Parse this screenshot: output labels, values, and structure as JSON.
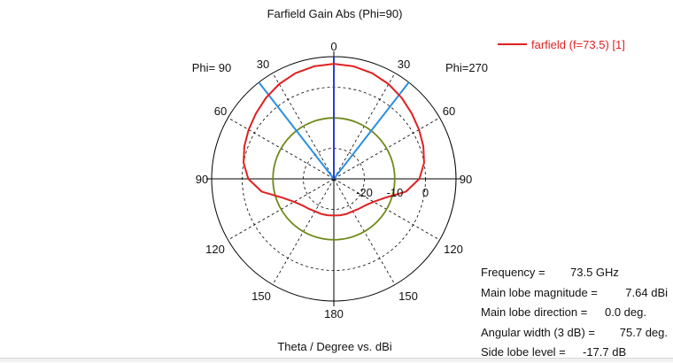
{
  "chart_data": {
    "type": "polar",
    "title": "Farfield Gain Abs (Phi=90)",
    "xlabel": "Theta / Degree vs. dBi",
    "phi_left_label": "Phi= 90",
    "phi_right_label": "Phi=270",
    "angle_tick_labels": {
      "top": "0",
      "upper_left": [
        "30",
        "60"
      ],
      "upper_right": [
        "30",
        "60"
      ],
      "left": "90",
      "right": "90",
      "lower_left": [
        "120",
        "150"
      ],
      "lower_right": [
        "120",
        "150"
      ],
      "bottom": "180"
    },
    "radial_tick_labels": [
      "-20",
      "-10",
      "0"
    ],
    "radial_range_dbi": [
      -30,
      10
    ],
    "grid": true,
    "legend_position": "top-right",
    "series": [
      {
        "name": "farfield (f=73.5) [1]",
        "color": "#e02020",
        "theta_deg": [
          0,
          10,
          20,
          30,
          40,
          50,
          60,
          70,
          80,
          90,
          100,
          110,
          120,
          130,
          140,
          150,
          160,
          170,
          180
        ],
        "gain_dbi": [
          7.64,
          7.4,
          6.8,
          5.8,
          4.6,
          3.3,
          2.2,
          1.2,
          0.0,
          -2.0,
          -6.0,
          -12.0,
          -15.0,
          -16.5,
          -17.2,
          -17.7,
          -17.8,
          -17.9,
          -18.0
        ]
      }
    ],
    "markers": {
      "main_lobe_direction_deg": 0.0,
      "beamwidth_edges_deg": [
        -37.85,
        37.85
      ],
      "sidelobe_level_circle_dbi": -10.06
    },
    "colors": {
      "main_lobe_line": "#2a3fd0",
      "beamwidth_lines": "#2b8fe0",
      "sidelobe_circle": "#6e8a1a"
    },
    "annotations": {
      "frequency": {
        "label": "Frequency =",
        "value": "73.5 GHz"
      },
      "main_lobe_magnitude": {
        "label": "Main lobe magnitude =",
        "value": "7.64 dBi"
      },
      "main_lobe_direction": {
        "label": "Main lobe direction =",
        "value": "0.0 deg."
      },
      "angular_width": {
        "label": "Angular width (3 dB) =",
        "value": "75.7 deg."
      },
      "side_lobe_level": {
        "label": "Side lobe level =",
        "value": "-17.7 dB"
      }
    }
  }
}
